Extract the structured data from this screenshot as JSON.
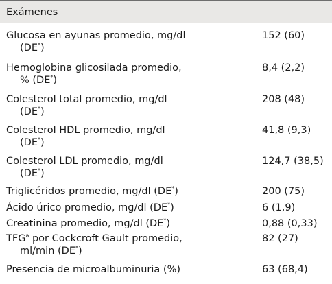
{
  "table": {
    "header": "Exámenes",
    "footnote_star": "*",
    "rows": [
      {
        "label_line1": "Glucosa en ayunas promedio, mg/dl",
        "label_line2_pre": "(DE",
        "label_line2_post": ")",
        "value": "152 (60)"
      },
      {
        "label_line1": "Hemoglobina glicosilada promedio,",
        "label_line2_pre": "% (DE",
        "label_line2_post": ")",
        "value": "8,4 (2,2)"
      },
      {
        "label_line1": "Colesterol total promedio, mg/dl",
        "label_line2_pre": "(DE",
        "label_line2_post": ")",
        "value": "208 (48)"
      },
      {
        "label_line1": "Colesterol HDL promedio, mg/dl",
        "label_line2_pre": "(DE",
        "label_line2_post": ")",
        "value": "41,8 (9,3)"
      },
      {
        "label_line1": "Colesterol LDL promedio, mg/dl",
        "label_line2_pre": "(DE",
        "label_line2_post": ")",
        "value": "124,7 (38,5)"
      },
      {
        "label_pre": "Triglicéridos promedio, mg/dl (DE",
        "label_post": ")",
        "value": "200 (75)"
      },
      {
        "label_pre": "Ácido úrico promedio, mg/dl (DE",
        "label_post": ")",
        "value": "6 (1,9)"
      },
      {
        "label_pre": "Creatinina promedio, mg/dl (DE",
        "label_post": ")",
        "value": "0,88 (0,33)"
      },
      {
        "label_tfg": "TFG",
        "label_sup_a": "a",
        "label_line1_rest": " por Cockcroft Gault promedio,",
        "label_line2": "ml/min (DE",
        "label_line2_post": ")",
        "value": "82 (27)"
      },
      {
        "label": "Presencia de microalbuminuria (%)",
        "value": "63 (68,4)"
      }
    ]
  }
}
